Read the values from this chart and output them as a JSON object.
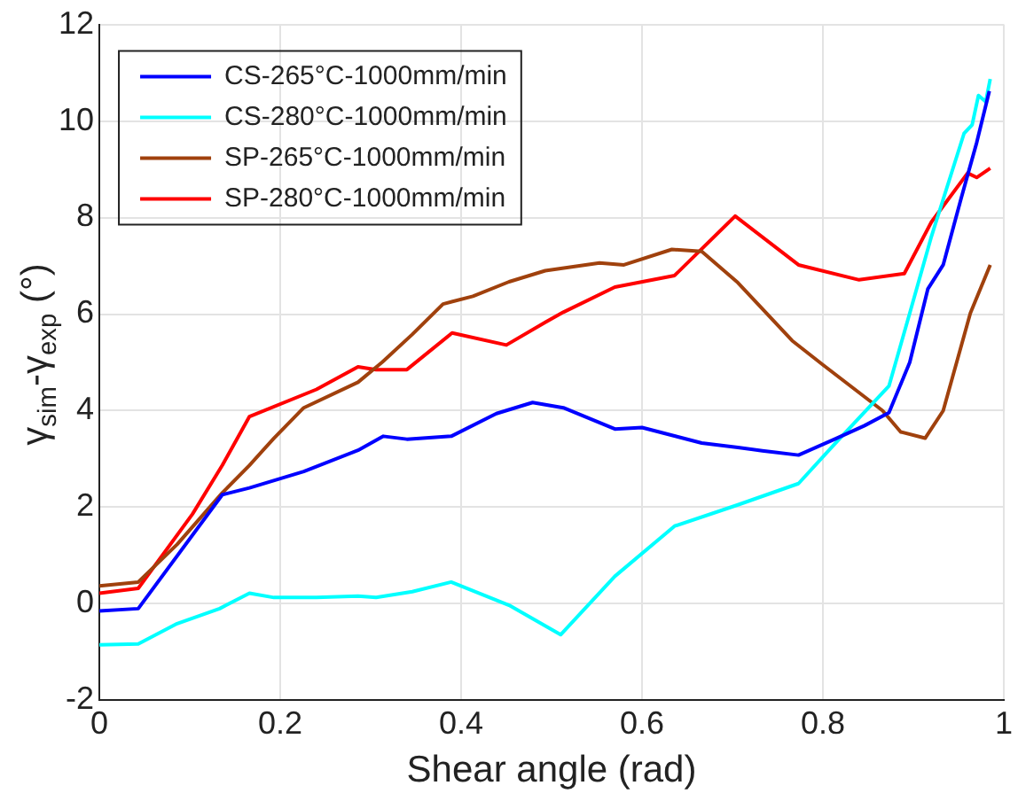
{
  "chart_data": {
    "type": "line",
    "xlabel": "Shear angle (rad)",
    "ylabel": "γ$_{sim}$-γ$_{exp}$ (°)",
    "xlim": [
      0,
      1
    ],
    "xticks": [
      0,
      0.2,
      0.4,
      0.6,
      0.8,
      1
    ],
    "ylim": [
      -2,
      12
    ],
    "yticks": [
      -2,
      0,
      2,
      4,
      6,
      8,
      10,
      12
    ],
    "grid": true,
    "legend": "top left",
    "line_style": "solid",
    "marker": "none",
    "series": [
      {
        "name": "CS-265°C-1000mm/min",
        "color": "#0000ff",
        "x": [
          0,
          0.043,
          0.136,
          0.166,
          0.226,
          0.286,
          0.314,
          0.34,
          0.389,
          0.439,
          0.479,
          0.513,
          0.57,
          0.6,
          0.666,
          0.706,
          0.733,
          0.773,
          0.813,
          0.846,
          0.873,
          0.896,
          0.916,
          0.933,
          0.953,
          0.97,
          0.984
        ],
        "values": [
          -0.15,
          -0.1,
          2.26,
          2.4,
          2.74,
          3.18,
          3.47,
          3.41,
          3.47,
          3.94,
          4.17,
          4.06,
          3.62,
          3.65,
          3.33,
          3.24,
          3.17,
          3.08,
          3.41,
          3.69,
          3.96,
          5.0,
          6.52,
          7.02,
          8.41,
          9.55,
          10.62
        ]
      },
      {
        "name": "CS-280°C-1000mm/min",
        "color": "#00ffff",
        "x": [
          0,
          0.043,
          0.086,
          0.133,
          0.166,
          0.193,
          0.24,
          0.286,
          0.306,
          0.346,
          0.389,
          0.453,
          0.51,
          0.57,
          0.636,
          0.706,
          0.773,
          0.813,
          0.873,
          0.896,
          0.92,
          0.956,
          0.965,
          0.972,
          0.98,
          0.985
        ],
        "values": [
          -0.85,
          -0.83,
          -0.41,
          -0.1,
          0.22,
          0.13,
          0.13,
          0.16,
          0.13,
          0.25,
          0.45,
          -0.03,
          -0.64,
          0.57,
          1.61,
          2.05,
          2.49,
          3.31,
          4.51,
          6.02,
          7.61,
          9.74,
          9.92,
          10.53,
          10.4,
          10.87
        ]
      },
      {
        "name": "SP-265°C-1000mm/min",
        "color": "#a0410d",
        "x": [
          0,
          0.043,
          0.086,
          0.136,
          0.166,
          0.193,
          0.226,
          0.286,
          0.313,
          0.346,
          0.38,
          0.413,
          0.453,
          0.493,
          0.553,
          0.58,
          0.633,
          0.666,
          0.706,
          0.766,
          0.8,
          0.866,
          0.886,
          0.913,
          0.933,
          0.963,
          0.985
        ],
        "values": [
          0.37,
          0.45,
          1.23,
          2.3,
          2.87,
          3.43,
          4.06,
          4.59,
          5.01,
          5.58,
          6.21,
          6.37,
          6.67,
          6.9,
          7.06,
          7.02,
          7.34,
          7.3,
          6.65,
          5.45,
          4.95,
          4.0,
          3.56,
          3.43,
          4.0,
          6.02,
          7.02
        ]
      },
      {
        "name": "SP-280°C-1000mm/min",
        "color": "#ff0000",
        "x": [
          0,
          0.043,
          0.103,
          0.136,
          0.166,
          0.24,
          0.286,
          0.306,
          0.34,
          0.39,
          0.45,
          0.493,
          0.513,
          0.57,
          0.636,
          0.703,
          0.773,
          0.84,
          0.89,
          0.92,
          0.96,
          0.97,
          0.985
        ],
        "values": [
          0.22,
          0.32,
          1.86,
          2.87,
          3.88,
          4.44,
          4.91,
          4.85,
          4.85,
          5.61,
          5.36,
          5.83,
          6.04,
          6.56,
          6.8,
          8.03,
          7.02,
          6.71,
          6.84,
          7.91,
          8.92,
          8.83,
          9.02
        ]
      }
    ]
  }
}
